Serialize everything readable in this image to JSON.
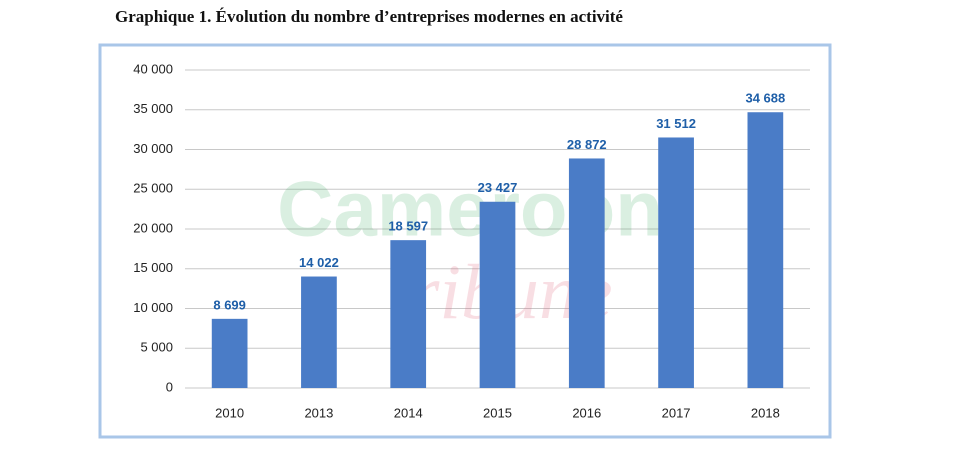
{
  "chart_data": {
    "type": "bar",
    "title": "Graphique 1. Évolution du nombre d’entreprises modernes en activité",
    "categories": [
      "2010",
      "2013",
      "2014",
      "2015",
      "2016",
      "2017",
      "2018"
    ],
    "values": [
      8699,
      14022,
      18597,
      23427,
      28872,
      31512,
      34688
    ],
    "value_labels": [
      "8 699",
      "14 022",
      "18 597",
      "23 427",
      "28 872",
      "31 512",
      "34 688"
    ],
    "color": "#4a7cc7",
    "ylim": [
      0,
      40000
    ],
    "yticks": [
      0,
      {
        "value": 5000,
        "label": "5 000"
      },
      {
        "value": 10000,
        "label": "10 000"
      },
      {
        "value": 15000,
        "label": "15 000"
      },
      {
        "value": 20000,
        "label": "20 000"
      },
      {
        "value": 25000,
        "label": "25 000"
      },
      {
        "value": 30000,
        "label": "30 000"
      },
      {
        "value": 35000,
        "label": "35 000"
      },
      {
        "value": 40000,
        "label": "40 000"
      }
    ],
    "grid": true,
    "watermark": [
      "Cameroon",
      "tribune"
    ]
  }
}
